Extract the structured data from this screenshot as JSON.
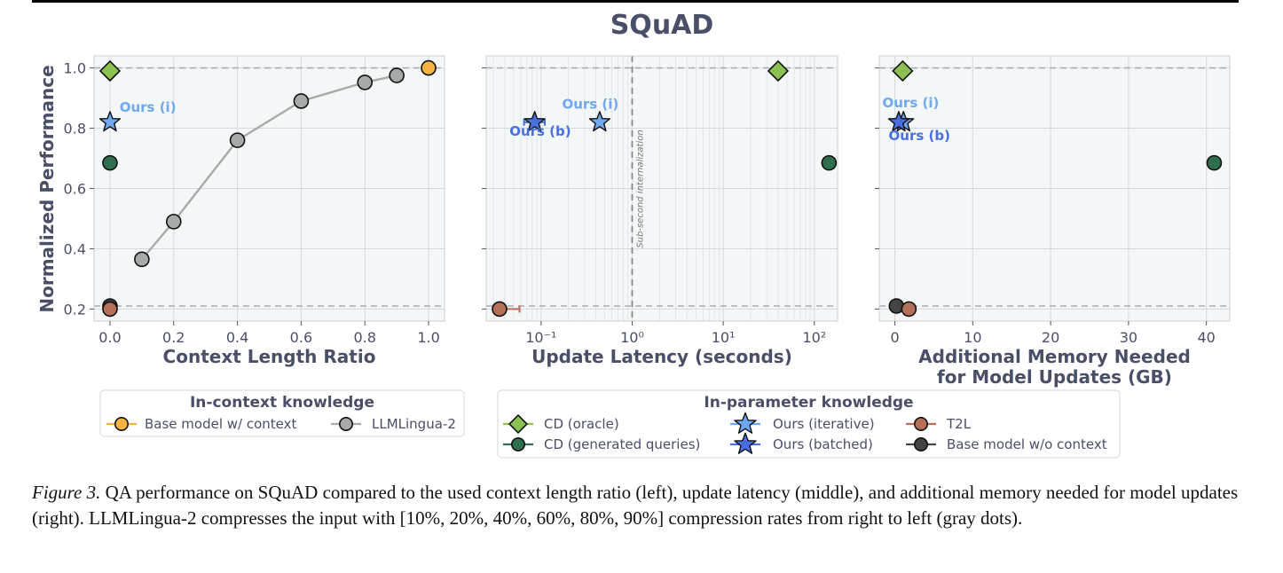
{
  "figure_title": "SQuAD",
  "caption": {
    "label": "Figure 3.",
    "text": "QA performance on SQuAD compared to the used context length ratio (left), update latency (middle), and additional memory needed for model updates (right). LLMLingua-2 compresses the input with [10%, 20%, 40%, 60%, 80%, 90%] compression rates from right to left (gray dots)."
  },
  "colors": {
    "panel_bg": "#f3f7f8",
    "axis_text": "#4a4f68",
    "cd_oracle": "#8cc152",
    "cd_generated": "#2f6e4f",
    "ours_iterative": "#6fa8ef",
    "ours_batched": "#4a6fe0",
    "t2l": "#b5705a",
    "base_no_context": "#444444",
    "base_with_context": "#f5b342",
    "llmlingua": "#a8aaaa"
  },
  "chart_data": [
    {
      "type": "scatter",
      "panel": "left",
      "xlabel": "Context Length Ratio",
      "ylabel": "Normalized Performance",
      "xlim": [
        -0.05,
        1.05
      ],
      "ylim": [
        0.16,
        1.04
      ],
      "xticks": [
        0.0,
        0.2,
        0.4,
        0.6,
        0.8,
        1.0
      ],
      "xtick_labels": [
        "0.0",
        "0.2",
        "0.4",
        "0.6",
        "0.8",
        "1.0"
      ],
      "yticks": [
        0.2,
        0.4,
        0.6,
        0.8,
        1.0
      ],
      "ytick_labels": [
        "0.2",
        "0.4",
        "0.6",
        "0.8",
        "1.0"
      ],
      "hlines": [
        1.0,
        0.21
      ],
      "grid": true,
      "series": [
        {
          "name": "CD (oracle)",
          "marker": "diamond",
          "color": "cd_oracle",
          "x": [
            0.0
          ],
          "y": [
            0.99
          ]
        },
        {
          "name": "Ours (iterative)",
          "marker": "star",
          "color": "ours_iterative",
          "x": [
            0.0
          ],
          "y": [
            0.82
          ]
        },
        {
          "name": "CD (generated queries)",
          "marker": "circle",
          "color": "cd_generated",
          "x": [
            0.0
          ],
          "y": [
            0.685
          ]
        },
        {
          "name": "Base model w/o context",
          "marker": "circle",
          "color": "base_no_context",
          "x": [
            0.0
          ],
          "y": [
            0.21
          ]
        },
        {
          "name": "T2L",
          "marker": "circle",
          "color": "t2l",
          "x": [
            0.0
          ],
          "y": [
            0.2
          ]
        },
        {
          "name": "LLMLingua-2",
          "marker": "circle",
          "color": "llmlingua",
          "line": true,
          "x": [
            0.1,
            0.2,
            0.4,
            0.6,
            0.8,
            0.9
          ],
          "y": [
            0.365,
            0.49,
            0.76,
            0.89,
            0.952,
            0.975
          ]
        },
        {
          "name": "Base model w/ context",
          "marker": "circle",
          "color": "base_with_context",
          "x": [
            1.0
          ],
          "y": [
            1.0
          ]
        }
      ],
      "annotations": [
        {
          "text": "Ours (i)",
          "color": "ours_iterative",
          "x": 0.03,
          "y": 0.855
        }
      ]
    },
    {
      "type": "scatter",
      "panel": "middle",
      "xlabel": "Update Latency (seconds)",
      "xscale": "log",
      "xlim": [
        0.025,
        180
      ],
      "ylim": [
        0.16,
        1.04
      ],
      "xticks": [
        0.1,
        1,
        10,
        100
      ],
      "xtick_labels": [
        "10⁻¹",
        "10⁰",
        "10¹",
        "10²"
      ],
      "yticks": [
        0.2,
        0.4,
        0.6,
        0.8,
        1.0
      ],
      "hlines": [
        1.0,
        0.21
      ],
      "vline": {
        "x": 1,
        "label": "Sub-second internalization"
      },
      "grid": true,
      "series": [
        {
          "name": "CD (oracle)",
          "marker": "diamond",
          "color": "cd_oracle",
          "x": [
            40
          ],
          "y": [
            0.99
          ]
        },
        {
          "name": "Ours (batched)",
          "marker": "star",
          "color": "ours_batched",
          "x": [
            0.085
          ],
          "y": [
            0.82
          ],
          "xerr_range": [
            0.065,
            0.11
          ]
        },
        {
          "name": "Ours (iterative)",
          "marker": "star",
          "color": "ours_iterative",
          "x": [
            0.44
          ],
          "y": [
            0.82
          ]
        },
        {
          "name": "CD (generated queries)",
          "marker": "circle",
          "color": "cd_generated",
          "x": [
            145
          ],
          "y": [
            0.685
          ]
        },
        {
          "name": "T2L",
          "marker": "circle",
          "color": "t2l",
          "x": [
            0.035
          ],
          "y": [
            0.2
          ],
          "xerr_range": [
            0.035,
            0.058
          ]
        }
      ],
      "annotations": [
        {
          "text": "Ours (i)",
          "color": "ours_iterative",
          "x": 0.17,
          "y": 0.865
        },
        {
          "text": "Ours (b)",
          "color": "ours_batched",
          "x": 0.045,
          "y": 0.775
        }
      ]
    },
    {
      "type": "scatter",
      "panel": "right",
      "xlabel": "Additional Memory Needed\nfor Model Updates (GB)",
      "xlim": [
        -2,
        43
      ],
      "ylim": [
        0.16,
        1.04
      ],
      "xticks": [
        0,
        10,
        20,
        30,
        40
      ],
      "xtick_labels": [
        "0",
        "10",
        "20",
        "30",
        "40"
      ],
      "yticks": [
        0.2,
        0.4,
        0.6,
        0.8,
        1.0
      ],
      "hlines": [
        1.0,
        0.21
      ],
      "grid": true,
      "series": [
        {
          "name": "CD (oracle)",
          "marker": "diamond",
          "color": "cd_oracle",
          "x": [
            1.0
          ],
          "y": [
            0.99
          ]
        },
        {
          "name": "Ours (iterative)",
          "marker": "star",
          "color": "ours_iterative",
          "x": [
            1.1
          ],
          "y": [
            0.82
          ]
        },
        {
          "name": "Ours (batched)",
          "marker": "star",
          "color": "ours_batched",
          "x": [
            0.5
          ],
          "y": [
            0.82
          ]
        },
        {
          "name": "CD (generated queries)",
          "marker": "circle",
          "color": "cd_generated",
          "x": [
            41
          ],
          "y": [
            0.685
          ]
        },
        {
          "name": "Base model w/o context",
          "marker": "circle",
          "color": "base_no_context",
          "x": [
            0.2
          ],
          "y": [
            0.21
          ]
        },
        {
          "name": "T2L",
          "marker": "circle",
          "color": "t2l",
          "x": [
            1.8
          ],
          "y": [
            0.2
          ]
        }
      ],
      "annotations": [
        {
          "text": "Ours (i)",
          "color": "ours_iterative",
          "x": -1.6,
          "y": 0.87
        },
        {
          "text": "Ours (b)",
          "color": "ours_batched",
          "x": -0.8,
          "y": 0.76
        }
      ]
    }
  ],
  "legends": [
    {
      "title": "In-context knowledge",
      "entries": [
        {
          "label": "Base model w/ context",
          "marker": "circle",
          "color": "base_with_context"
        },
        {
          "label": "LLMLingua-2",
          "marker": "circle",
          "color": "llmlingua"
        }
      ]
    },
    {
      "title": "In-parameter knowledge",
      "entries": [
        {
          "label": "CD (oracle)",
          "marker": "diamond",
          "color": "cd_oracle"
        },
        {
          "label": "CD (generated queries)",
          "marker": "circle",
          "color": "cd_generated"
        },
        {
          "label": "Ours (iterative)",
          "marker": "star",
          "color": "ours_iterative"
        },
        {
          "label": "Ours (batched)",
          "marker": "star",
          "color": "ours_batched"
        },
        {
          "label": "T2L",
          "marker": "circle",
          "color": "t2l"
        },
        {
          "label": "Base model w/o context",
          "marker": "circle",
          "color": "base_no_context"
        }
      ]
    }
  ]
}
